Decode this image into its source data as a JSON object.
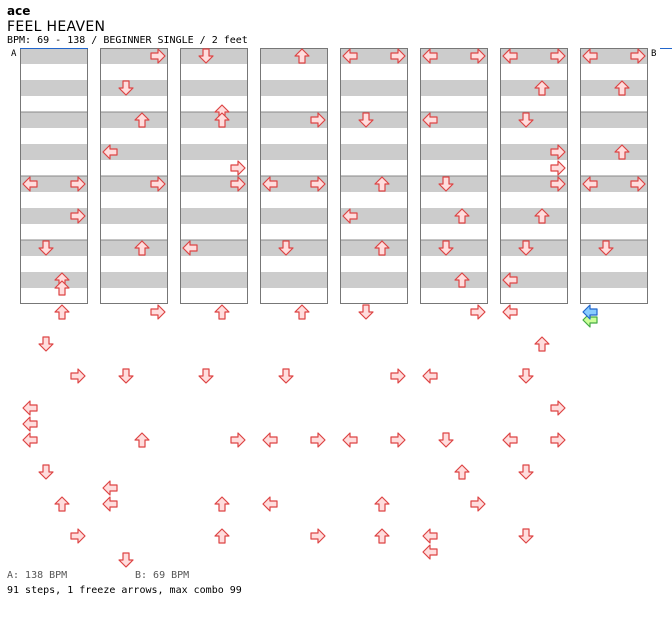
{
  "header": {
    "brand": "ace",
    "title": "FEEL HEAVEN",
    "info": "BPM: 69 - 138 / BEGINNER SINGLE / 2 feet"
  },
  "bpm_markers": [
    {
      "label": "A",
      "measure": 0,
      "beat": 0
    },
    {
      "label": "B",
      "measure": 32,
      "beat": 0
    }
  ],
  "legend": {
    "bpm_a": "A: 138 BPM",
    "bpm_b": "B: 69 BPM"
  },
  "stats": "91 steps, 1 freeze arrows, max combo 99",
  "colors": {
    "stripe": "#cccccc",
    "arrow_fill": "#ffdddd",
    "arrow_stroke": "#dd4444",
    "freeze_head_fill": "#88ccff",
    "freeze_head_stroke": "#2266cc",
    "freeze_tail_fill": "#ccff99",
    "freeze_tail_stroke": "#44aa44",
    "bpm_line": "#2266cc"
  },
  "chart_data": {
    "type": "step-chart",
    "columns": 8,
    "measures_per_column": 4,
    "beats_per_measure": 4,
    "lanes": [
      "left",
      "down",
      "up",
      "right"
    ],
    "notes": [
      {
        "column": 0,
        "beat": 8,
        "lanes": [
          "left",
          "right"
        ]
      },
      {
        "column": 0,
        "beat": 10,
        "lanes": [
          "right"
        ]
      },
      {
        "column": 0,
        "beat": 12,
        "lanes": [
          "down"
        ]
      },
      {
        "column": 0,
        "beat": 14,
        "lanes": [
          "up"
        ]
      },
      {
        "column": 0,
        "beat": 14.5,
        "lanes": [
          "up"
        ]
      },
      {
        "column": 0,
        "beat": 16,
        "lanes": [
          "up"
        ]
      },
      {
        "column": 0,
        "beat": 18,
        "lanes": [
          "down"
        ]
      },
      {
        "column": 0,
        "beat": 20,
        "lanes": [
          "right"
        ]
      },
      {
        "column": 0,
        "beat": 22,
        "lanes": [
          "left"
        ]
      },
      {
        "column": 0,
        "beat": 23,
        "lanes": [
          "left"
        ]
      },
      {
        "column": 0,
        "beat": 24,
        "lanes": [
          "left"
        ]
      },
      {
        "column": 0,
        "beat": 26,
        "lanes": [
          "down"
        ]
      },
      {
        "column": 0,
        "beat": 28,
        "lanes": [
          "up"
        ]
      },
      {
        "column": 0,
        "beat": 30,
        "lanes": [
          "right"
        ]
      },
      {
        "column": 1,
        "beat": 0,
        "lanes": [
          "right"
        ]
      },
      {
        "column": 1,
        "beat": 2,
        "lanes": [
          "down"
        ]
      },
      {
        "column": 1,
        "beat": 4,
        "lanes": [
          "up"
        ]
      },
      {
        "column": 1,
        "beat": 6,
        "lanes": [
          "left"
        ]
      },
      {
        "column": 1,
        "beat": 8,
        "lanes": [
          "right"
        ]
      },
      {
        "column": 1,
        "beat": 12,
        "lanes": [
          "up"
        ]
      },
      {
        "column": 1,
        "beat": 16,
        "lanes": [
          "right"
        ]
      },
      {
        "column": 1,
        "beat": 20,
        "lanes": [
          "down"
        ]
      },
      {
        "column": 1,
        "beat": 24,
        "lanes": [
          "up"
        ]
      },
      {
        "column": 1,
        "beat": 27,
        "lanes": [
          "left"
        ]
      },
      {
        "column": 1,
        "beat": 28,
        "lanes": [
          "left"
        ]
      },
      {
        "column": 1,
        "beat": 31.5,
        "lanes": [
          "down"
        ]
      },
      {
        "column": 2,
        "beat": 0,
        "lanes": [
          "down"
        ]
      },
      {
        "column": 2,
        "beat": 3.5,
        "lanes": [
          "up"
        ]
      },
      {
        "column": 2,
        "beat": 4,
        "lanes": [
          "up"
        ]
      },
      {
        "column": 2,
        "beat": 7,
        "lanes": [
          "right"
        ]
      },
      {
        "column": 2,
        "beat": 8,
        "lanes": [
          "right"
        ]
      },
      {
        "column": 2,
        "beat": 12,
        "lanes": [
          "left"
        ]
      },
      {
        "column": 2,
        "beat": 16,
        "lanes": [
          "up"
        ]
      },
      {
        "column": 2,
        "beat": 20,
        "lanes": [
          "down"
        ]
      },
      {
        "column": 2,
        "beat": 24,
        "lanes": [
          "right"
        ]
      },
      {
        "column": 2,
        "beat": 28,
        "lanes": [
          "up"
        ]
      },
      {
        "column": 2,
        "beat": 30,
        "lanes": [
          "up"
        ]
      },
      {
        "column": 3,
        "beat": 0,
        "lanes": [
          "up"
        ]
      },
      {
        "column": 3,
        "beat": 4,
        "lanes": [
          "right"
        ]
      },
      {
        "column": 3,
        "beat": 8,
        "lanes": [
          "left",
          "right"
        ]
      },
      {
        "column": 3,
        "beat": 12,
        "lanes": [
          "down"
        ]
      },
      {
        "column": 3,
        "beat": 16,
        "lanes": [
          "up"
        ]
      },
      {
        "column": 3,
        "beat": 20,
        "lanes": [
          "down"
        ]
      },
      {
        "column": 3,
        "beat": 24,
        "lanes": [
          "left",
          "right"
        ]
      },
      {
        "column": 3,
        "beat": 28,
        "lanes": [
          "left"
        ]
      },
      {
        "column": 3,
        "beat": 30,
        "lanes": [
          "right"
        ]
      },
      {
        "column": 4,
        "beat": 0,
        "lanes": [
          "left",
          "right"
        ]
      },
      {
        "column": 4,
        "beat": 4,
        "lanes": [
          "down"
        ]
      },
      {
        "column": 4,
        "beat": 8,
        "lanes": [
          "up"
        ]
      },
      {
        "column": 4,
        "beat": 10,
        "lanes": [
          "left"
        ]
      },
      {
        "column": 4,
        "beat": 12,
        "lanes": [
          "up"
        ]
      },
      {
        "column": 4,
        "beat": 16,
        "lanes": [
          "down"
        ]
      },
      {
        "column": 4,
        "beat": 20,
        "lanes": [
          "right"
        ]
      },
      {
        "column": 4,
        "beat": 24,
        "lanes": [
          "left",
          "right"
        ]
      },
      {
        "column": 4,
        "beat": 28,
        "lanes": [
          "up"
        ]
      },
      {
        "column": 4,
        "beat": 30,
        "lanes": [
          "up"
        ]
      },
      {
        "column": 5,
        "beat": 0,
        "lanes": [
          "left",
          "right"
        ]
      },
      {
        "column": 5,
        "beat": 4,
        "lanes": [
          "left"
        ]
      },
      {
        "column": 5,
        "beat": 8,
        "lanes": [
          "down"
        ]
      },
      {
        "column": 5,
        "beat": 10,
        "lanes": [
          "up"
        ]
      },
      {
        "column": 5,
        "beat": 12,
        "lanes": [
          "down"
        ]
      },
      {
        "column": 5,
        "beat": 14,
        "lanes": [
          "up"
        ]
      },
      {
        "column": 5,
        "beat": 16,
        "lanes": [
          "right"
        ]
      },
      {
        "column": 5,
        "beat": 20,
        "lanes": [
          "left"
        ]
      },
      {
        "column": 5,
        "beat": 24,
        "lanes": [
          "down"
        ]
      },
      {
        "column": 5,
        "beat": 26,
        "lanes": [
          "up"
        ]
      },
      {
        "column": 5,
        "beat": 28,
        "lanes": [
          "right"
        ]
      },
      {
        "column": 5,
        "beat": 30,
        "lanes": [
          "left"
        ]
      },
      {
        "column": 5,
        "beat": 31,
        "lanes": [
          "left"
        ]
      },
      {
        "column": 6,
        "beat": 0,
        "lanes": [
          "left",
          "right"
        ]
      },
      {
        "column": 6,
        "beat": 2,
        "lanes": [
          "up"
        ]
      },
      {
        "column": 6,
        "beat": 4,
        "lanes": [
          "down"
        ]
      },
      {
        "column": 6,
        "beat": 6,
        "lanes": [
          "right"
        ]
      },
      {
        "column": 6,
        "beat": 7,
        "lanes": [
          "right"
        ]
      },
      {
        "column": 6,
        "beat": 8,
        "lanes": [
          "right"
        ]
      },
      {
        "column": 6,
        "beat": 10,
        "lanes": [
          "up"
        ]
      },
      {
        "column": 6,
        "beat": 12,
        "lanes": [
          "down"
        ]
      },
      {
        "column": 6,
        "beat": 14,
        "lanes": [
          "left"
        ]
      },
      {
        "column": 6,
        "beat": 16,
        "lanes": [
          "left"
        ]
      },
      {
        "column": 6,
        "beat": 18,
        "lanes": [
          "up"
        ]
      },
      {
        "column": 6,
        "beat": 20,
        "lanes": [
          "down"
        ]
      },
      {
        "column": 6,
        "beat": 22,
        "lanes": [
          "right"
        ]
      },
      {
        "column": 6,
        "beat": 24,
        "lanes": [
          "left",
          "right"
        ]
      },
      {
        "column": 6,
        "beat": 26,
        "lanes": [
          "down"
        ]
      },
      {
        "column": 6,
        "beat": 30,
        "lanes": [
          "down"
        ]
      },
      {
        "column": 7,
        "beat": 0,
        "lanes": [
          "left",
          "right"
        ]
      },
      {
        "column": 7,
        "beat": 2,
        "lanes": [
          "up"
        ]
      },
      {
        "column": 7,
        "beat": 6,
        "lanes": [
          "up"
        ]
      },
      {
        "column": 7,
        "beat": 8,
        "lanes": [
          "left",
          "right"
        ]
      },
      {
        "column": 7,
        "beat": 12,
        "lanes": [
          "down"
        ]
      }
    ],
    "freeze_arrows": [
      {
        "column": 7,
        "beat": 16,
        "lane": "left",
        "length_beats": 0.5
      }
    ]
  }
}
